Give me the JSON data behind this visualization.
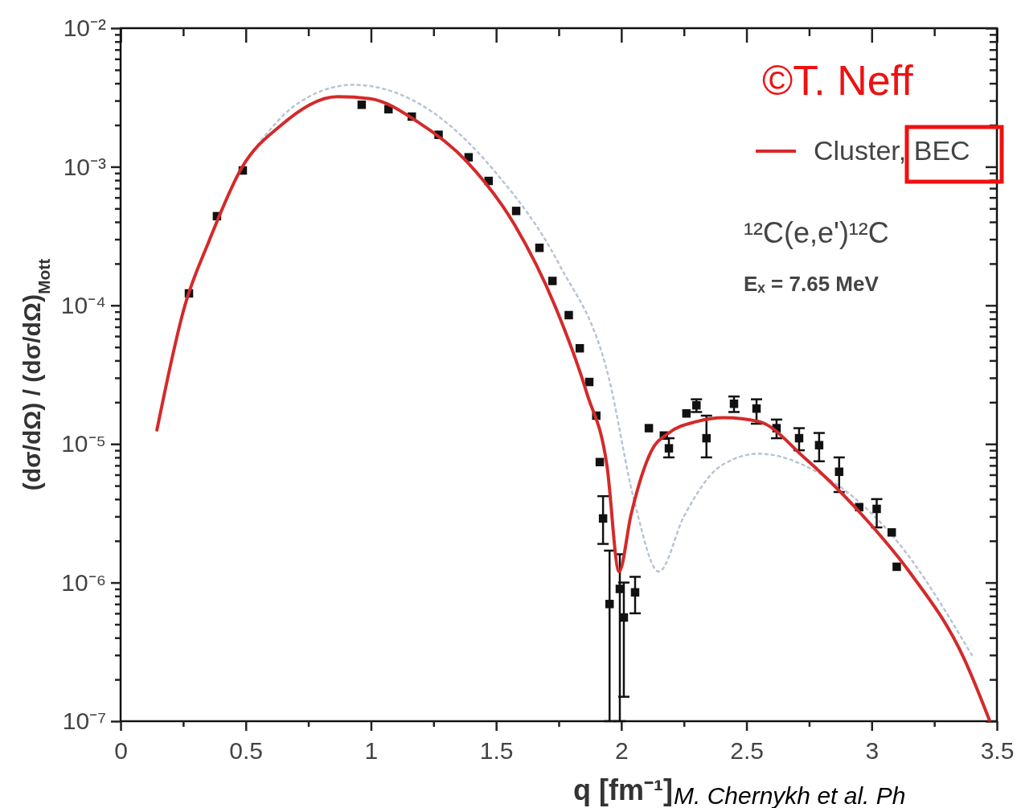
{
  "chart_data": {
    "type": "line",
    "xlabel": "q [fm⁻¹]",
    "ylabel": "(dσ/dΩ) / (dσ/dΩ)$_{Mott}$",
    "xlim": [
      0,
      3.5
    ],
    "xticks": [
      0,
      {
        "value": 0.25,
        "label": null
      },
      0.5,
      {
        "value": 0.75,
        "label": null
      },
      1,
      {
        "value": 1.25,
        "label": null
      },
      1.5,
      {
        "value": 1.75,
        "label": null
      },
      2,
      {
        "value": 2.25,
        "label": null
      },
      2.5,
      {
        "value": 2.75,
        "label": null
      },
      3,
      {
        "value": 3.25,
        "label": null
      },
      3.5
    ],
    "ylim": [
      1e-07,
      0.01
    ],
    "yticks": [
      {
        "value": 1e-07,
        "label": "10⁻⁷"
      },
      {
        "value": 2e-07,
        "label": null
      },
      {
        "value": 3e-07,
        "label": null
      },
      {
        "value": 4e-07,
        "label": null
      },
      {
        "value": 5e-07,
        "label": null
      },
      {
        "value": 6e-07,
        "label": null
      },
      {
        "value": 7e-07,
        "label": null
      },
      {
        "value": 8e-07,
        "label": null
      },
      {
        "value": 9e-07,
        "label": null
      },
      {
        "value": 1e-06,
        "label": "10⁻⁶"
      },
      {
        "value": 2e-06,
        "label": null
      },
      {
        "value": 3e-06,
        "label": null
      },
      {
        "value": 4e-06,
        "label": null
      },
      {
        "value": 5e-06,
        "label": null
      },
      {
        "value": 6e-06,
        "label": null
      },
      {
        "value": 7e-06,
        "label": null
      },
      {
        "value": 8e-06,
        "label": null
      },
      {
        "value": 9e-06,
        "label": null
      },
      {
        "value": 1e-05,
        "label": "10⁻⁵"
      },
      {
        "value": 2e-05,
        "label": null
      },
      {
        "value": 3e-05,
        "label": null
      },
      {
        "value": 4e-05,
        "label": null
      },
      {
        "value": 5e-05,
        "label": null
      },
      {
        "value": 6e-05,
        "label": null
      },
      {
        "value": 7e-05,
        "label": null
      },
      {
        "value": 8e-05,
        "label": null
      },
      {
        "value": 9e-05,
        "label": null
      },
      {
        "value": 0.0001,
        "label": "10⁻⁴"
      },
      {
        "value": 0.0002,
        "label": null
      },
      {
        "value": 0.0003,
        "label": null
      },
      {
        "value": 0.0004,
        "label": null
      },
      {
        "value": 0.0005,
        "label": null
      },
      {
        "value": 0.0006,
        "label": null
      },
      {
        "value": 0.0007,
        "label": null
      },
      {
        "value": 0.0008,
        "label": null
      },
      {
        "value": 0.0009,
        "label": null
      },
      {
        "value": 0.001,
        "label": "10⁻³"
      },
      {
        "value": 0.002,
        "label": null
      },
      {
        "value": 0.003,
        "label": null
      },
      {
        "value": 0.004,
        "label": null
      },
      {
        "value": 0.005,
        "label": null
      },
      {
        "value": 0.006,
        "label": null
      },
      {
        "value": 0.007,
        "label": null
      },
      {
        "value": 0.008,
        "label": null
      },
      {
        "value": 0.009,
        "label": null
      },
      {
        "value": 0.01,
        "label": "10⁻²"
      }
    ],
    "log": "y",
    "grid": false,
    "legend": "top right",
    "annotations": [
      "©T. Neff",
      "¹²C(e,e')¹²C",
      "Eₓ = 7.65 MeV",
      "M. Chernykh et al. Ph"
    ],
    "series": [
      {
        "type": "line",
        "line_style": "dotted",
        "color": "#b8c4d4",
        "x": [
          0.5,
          0.7,
          0.93,
          1.2,
          1.5,
          1.75,
          1.95,
          2.05,
          2.15,
          2.25,
          2.4,
          2.55,
          2.8,
          3.1,
          3.4
        ],
        "values": [
          0.0011,
          0.0028,
          0.0039,
          0.0028,
          0.0009,
          0.0002,
          3e-05,
          4e-06,
          1.2e-06,
          3e-06,
          7e-06,
          8.5e-06,
          6e-06,
          2e-06,
          3e-07
        ]
      },
      {
        "type": "scatter",
        "marker": "square",
        "color": "#111111",
        "x": [
          0.273,
          0.385,
          0.488,
          0.963,
          1.07,
          1.163,
          1.27,
          1.39,
          1.47,
          1.58,
          1.673,
          1.725,
          1.79,
          1.834,
          1.872,
          1.9,
          1.914,
          1.927,
          1.953,
          1.994,
          2.01,
          2.055,
          2.11,
          2.17,
          2.19,
          2.26,
          2.3,
          2.34,
          2.45,
          2.54,
          2.62,
          2.71,
          2.79,
          2.87,
          2.95,
          3.02,
          3.08,
          3.1
        ],
        "values": [
          0.000122,
          0.00044,
          0.00094,
          0.0028,
          0.0026,
          0.0023,
          0.0017,
          0.00117,
          0.00079,
          0.00048,
          0.00026,
          0.00015,
          8.5e-05,
          4.9e-05,
          2.8e-05,
          1.6e-05,
          7.4e-06,
          2.9e-06,
          7e-07,
          9e-07,
          5.6e-07,
          8.5e-07,
          1.3e-05,
          1.15e-05,
          9.3e-06,
          1.66e-05,
          1.9e-05,
          1.1e-05,
          1.95e-05,
          1.8e-05,
          1.3e-05,
          1.1e-05,
          9.8e-06,
          6.3e-06,
          3.5e-06,
          3.4e-06,
          2.3e-06,
          1.3e-06
        ],
        "errors": [
          null,
          null,
          null,
          null,
          null,
          null,
          null,
          null,
          null,
          null,
          null,
          null,
          null,
          null,
          null,
          null,
          null,
          [
            1.9e-06,
            4.2e-06
          ],
          [
            1e-07,
            1.7e-06
          ],
          [
            1e-07,
            1.6e-06
          ],
          [
            1.5e-07,
            1e-06
          ],
          [
            6e-07,
            1.1e-06
          ],
          null,
          null,
          [
            8e-06,
            1.1e-05
          ],
          null,
          [
            1.7e-05,
            2.1e-05
          ],
          [
            8e-06,
            1.6e-05
          ],
          [
            1.7e-05,
            2.2e-05
          ],
          [
            1.4e-05,
            2.1e-05
          ],
          [
            1.1e-05,
            1.5e-05
          ],
          [
            9e-06,
            1.3e-05
          ],
          [
            7.5e-06,
            1.2e-05
          ],
          [
            4.5e-06,
            8e-06
          ],
          null,
          [
            2.5e-06,
            4e-06
          ],
          null,
          null
        ]
      },
      {
        "type": "line",
        "name": "Cluster, BEC",
        "color": "#d42a2a",
        "line_style": "solid",
        "x": [
          0.145,
          0.257,
          0.353,
          0.482,
          0.642,
          0.867,
          0.996,
          1.188,
          1.381,
          1.574,
          1.734,
          1.863,
          1.943,
          1.991,
          2.039,
          2.12,
          2.19,
          2.3,
          2.41,
          2.55,
          2.73,
          2.99,
          3.15,
          3.37,
          3.47
        ],
        "values": [
          1.26e-05,
          0.0001,
          0.00029,
          0.00097,
          0.002,
          0.0032,
          0.0031,
          0.0021,
          0.0011,
          0.00038,
          0.0001,
          2.3e-05,
          6.9e-06,
          1.2e-06,
          3.1e-06,
          8.9e-06,
          1.2e-05,
          1.45e-05,
          1.55e-05,
          1.45e-05,
          8e-06,
          2.7e-06,
          1.2e-06,
          2.8e-07,
          1.02e-07
        ]
      }
    ]
  }
}
